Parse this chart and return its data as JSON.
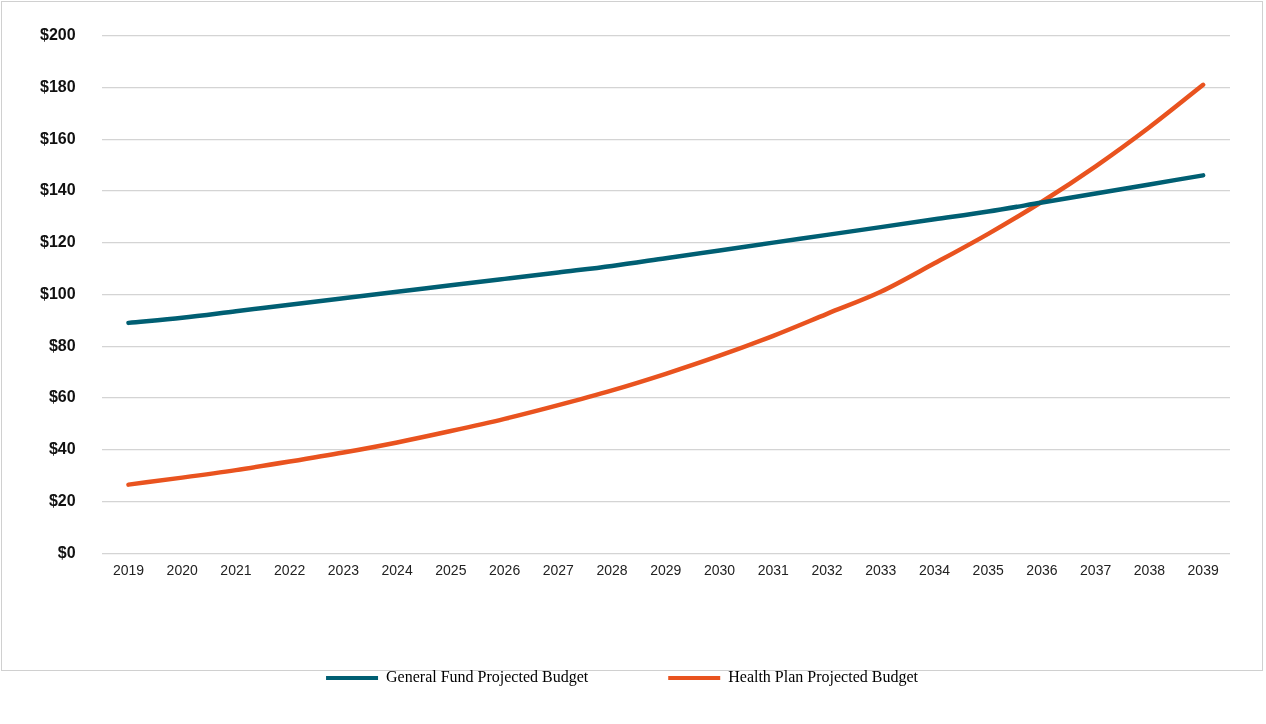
{
  "chart_data": {
    "type": "line",
    "categories": [
      "2019",
      "2020",
      "2021",
      "2022",
      "2023",
      "2024",
      "2025",
      "2026",
      "2027",
      "2028",
      "2029",
      "2030",
      "2031",
      "2032",
      "2033",
      "2034",
      "2035",
      "2036",
      "2037",
      "2038",
      "2039"
    ],
    "series": [
      {
        "name": "General Fund Projected Budget",
        "color": "#005f73",
        "values": [
          89,
          91,
          93.5,
          96,
          98.5,
          101,
          103.5,
          106,
          108.5,
          111,
          114,
          117,
          120,
          123,
          126,
          129,
          132,
          135.5,
          139,
          142.5,
          146
        ]
      },
      {
        "name": "Health Plan Projected Budget",
        "color": "#e9531f",
        "values": [
          26.5,
          29.2,
          32.1,
          35.4,
          38.9,
          42.8,
          47.2,
          51.9,
          57.2,
          62.9,
          69.3,
          76.3,
          84,
          92.5,
          101,
          112,
          123.4,
          135.8,
          149.5,
          164.6,
          181
        ]
      }
    ],
    "ylim": [
      0,
      200
    ],
    "yticks": [
      {
        "value": 0,
        "label": "$0"
      },
      {
        "value": 20,
        "label": "$20"
      },
      {
        "value": 40,
        "label": "$40"
      },
      {
        "value": 60,
        "label": "$60"
      },
      {
        "value": 80,
        "label": "$80"
      },
      {
        "value": 100,
        "label": "$100"
      },
      {
        "value": 120,
        "label": "$120"
      },
      {
        "value": 140,
        "label": "$140"
      },
      {
        "value": 160,
        "label": "$160"
      },
      {
        "value": 180,
        "label": "$180"
      },
      {
        "value": 200,
        "label": "$200"
      }
    ],
    "grid": "y",
    "legend": "bottom",
    "marker": "none",
    "line_style": "solid"
  }
}
